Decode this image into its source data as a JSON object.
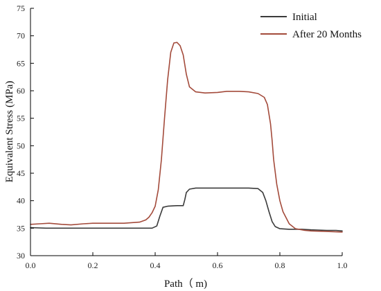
{
  "chart_data": {
    "type": "line",
    "xlabel": "Path（ m)",
    "ylabel": "Equivalent Stress (MPa)",
    "xlim": [
      0.0,
      1.0
    ],
    "ylim": [
      30,
      75
    ],
    "x_ticks": [
      "0.0",
      "0.2",
      "0.4",
      "0.6",
      "0.8",
      "1.0"
    ],
    "y_ticks": [
      "30",
      "35",
      "40",
      "45",
      "50",
      "55",
      "60",
      "65",
      "70",
      "75"
    ],
    "x_tick_values": [
      0.0,
      0.2,
      0.4,
      0.6,
      0.8,
      1.0
    ],
    "y_tick_values": [
      30,
      35,
      40,
      45,
      50,
      55,
      60,
      65,
      70,
      75
    ],
    "grid": false,
    "legend_position": "top-right",
    "series": [
      {
        "name": "Initial",
        "color": "#3a3a3a",
        "points": [
          [
            0.0,
            35.1
          ],
          [
            0.05,
            35.0
          ],
          [
            0.1,
            35.0
          ],
          [
            0.2,
            35.0
          ],
          [
            0.3,
            35.0
          ],
          [
            0.39,
            35.0
          ],
          [
            0.405,
            35.4
          ],
          [
            0.415,
            37.2
          ],
          [
            0.425,
            38.8
          ],
          [
            0.44,
            39.0
          ],
          [
            0.47,
            39.1
          ],
          [
            0.49,
            39.1
          ],
          [
            0.495,
            40.2
          ],
          [
            0.5,
            41.5
          ],
          [
            0.51,
            42.1
          ],
          [
            0.53,
            42.3
          ],
          [
            0.6,
            42.3
          ],
          [
            0.65,
            42.3
          ],
          [
            0.7,
            42.3
          ],
          [
            0.73,
            42.2
          ],
          [
            0.745,
            41.5
          ],
          [
            0.755,
            40.0
          ],
          [
            0.765,
            38.0
          ],
          [
            0.775,
            36.2
          ],
          [
            0.785,
            35.3
          ],
          [
            0.8,
            34.9
          ],
          [
            0.83,
            34.8
          ],
          [
            0.87,
            34.8
          ],
          [
            0.9,
            34.7
          ],
          [
            0.95,
            34.6
          ],
          [
            0.98,
            34.6
          ],
          [
            1.0,
            34.5
          ]
        ]
      },
      {
        "name": "After 20 Months",
        "color": "#a34a3a",
        "points": [
          [
            0.0,
            35.7
          ],
          [
            0.03,
            35.8
          ],
          [
            0.06,
            35.9
          ],
          [
            0.1,
            35.7
          ],
          [
            0.13,
            35.6
          ],
          [
            0.17,
            35.8
          ],
          [
            0.2,
            35.9
          ],
          [
            0.25,
            35.9
          ],
          [
            0.3,
            35.9
          ],
          [
            0.35,
            36.1
          ],
          [
            0.37,
            36.5
          ],
          [
            0.38,
            37.0
          ],
          [
            0.39,
            37.8
          ],
          [
            0.4,
            39.0
          ],
          [
            0.41,
            42.0
          ],
          [
            0.42,
            47.5
          ],
          [
            0.43,
            55.0
          ],
          [
            0.44,
            62.0
          ],
          [
            0.45,
            67.0
          ],
          [
            0.46,
            68.7
          ],
          [
            0.47,
            68.8
          ],
          [
            0.48,
            68.2
          ],
          [
            0.49,
            66.5
          ],
          [
            0.5,
            63.0
          ],
          [
            0.51,
            60.7
          ],
          [
            0.53,
            59.8
          ],
          [
            0.56,
            59.6
          ],
          [
            0.6,
            59.7
          ],
          [
            0.63,
            59.9
          ],
          [
            0.67,
            59.9
          ],
          [
            0.7,
            59.8
          ],
          [
            0.73,
            59.5
          ],
          [
            0.75,
            58.8
          ],
          [
            0.76,
            57.5
          ],
          [
            0.77,
            54.0
          ],
          [
            0.775,
            51.0
          ],
          [
            0.78,
            47.5
          ],
          [
            0.79,
            43.0
          ],
          [
            0.8,
            40.0
          ],
          [
            0.81,
            38.0
          ],
          [
            0.83,
            35.8
          ],
          [
            0.85,
            34.9
          ],
          [
            0.88,
            34.6
          ],
          [
            0.9,
            34.5
          ],
          [
            0.95,
            34.4
          ],
          [
            1.0,
            34.3
          ]
        ]
      }
    ]
  }
}
